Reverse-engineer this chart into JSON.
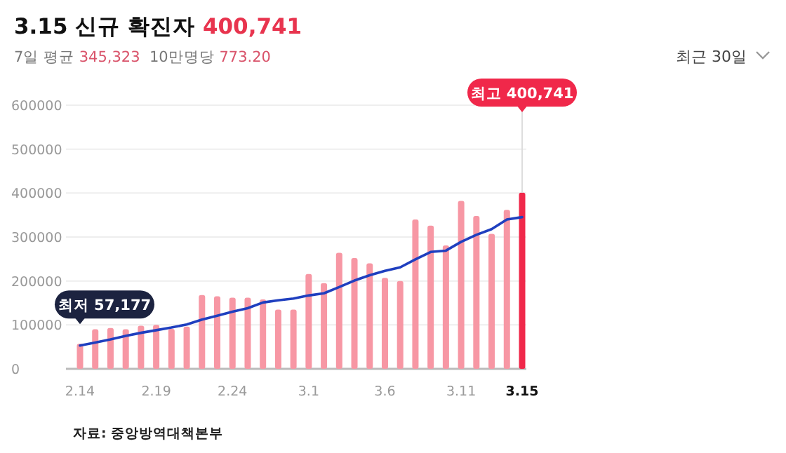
{
  "chart_data": {
    "type": "bar",
    "title": "3.15 신규 확진자 400,741",
    "subtitle": "7일 평균 345,323  10만명당 773.20",
    "categories": [
      "2.14",
      null,
      null,
      null,
      null,
      "2.19",
      null,
      null,
      null,
      null,
      "2.24",
      null,
      null,
      null,
      null,
      "3.1",
      null,
      null,
      null,
      null,
      "3.6",
      null,
      null,
      null,
      null,
      "3.11",
      null,
      null,
      null,
      "3.15"
    ],
    "series": [
      {
        "colors": [
          "#f797a4",
          "#f797a4",
          "#f797a4",
          "#f797a4",
          "#f797a4",
          "#f797a4",
          "#f797a4",
          "#f797a4",
          "#f797a4",
          "#f797a4",
          "#f797a4",
          "#f797a4",
          "#f797a4",
          "#f797a4",
          "#f797a4",
          "#f797a4",
          "#f797a4",
          "#f797a4",
          "#f797a4",
          "#f797a4",
          "#f797a4",
          "#f797a4",
          "#f797a4",
          "#f797a4",
          "#f797a4",
          "#f797a4",
          "#f797a4",
          "#f797a4",
          "#f797a4",
          "#f0284a"
        ],
        "values": [
          57177,
          90000,
          93000,
          90000,
          98000,
          100000,
          91000,
          96000,
          168000,
          165000,
          162000,
          162000,
          158000,
          135000,
          135000,
          216000,
          195000,
          264000,
          252000,
          240000,
          207000,
          200000,
          340000,
          326000,
          281000,
          382000,
          348000,
          307000,
          362000,
          400741
        ]
      },
      {
        "type": "line",
        "color": "#1f3fbf",
        "values": [
          53000,
          60000,
          67000,
          75000,
          82000,
          88000,
          94000,
          101000,
          112000,
          121000,
          130000,
          138000,
          151000,
          156000,
          160000,
          167000,
          172000,
          186000,
          201000,
          213000,
          223000,
          231000,
          249000,
          266000,
          269000,
          289000,
          305000,
          318000,
          340000,
          345323
        ]
      }
    ],
    "ylim": [
      0,
      600000
    ],
    "yticks": [
      0,
      100000,
      200000,
      300000,
      400000,
      500000,
      600000
    ],
    "grid": "y",
    "annotations": [
      {
        "text": "최저 57,177",
        "x": "2.14",
        "y": 57177
      },
      {
        "text": "최고 400,741",
        "x": "3.15",
        "y": 400741
      },
      "최근 30일",
      "자료: 중앙방역대책본부"
    ]
  }
}
